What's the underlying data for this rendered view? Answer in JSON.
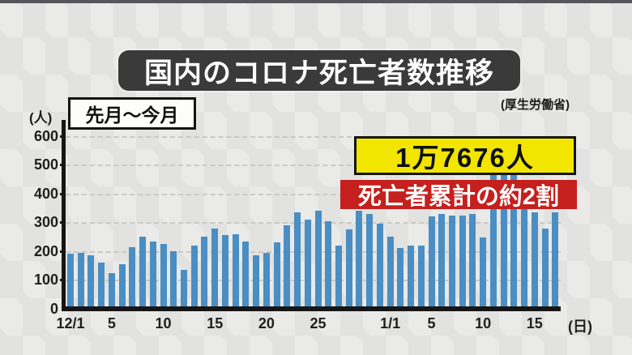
{
  "header": {
    "title": "国内のコロナ死亡者数推移",
    "period_label": "先月〜今月",
    "source": "(厚生労働省)"
  },
  "callouts": {
    "total_deaths_label": "1万7676人",
    "share_label": "死亡者累計の約2割",
    "total_box_color": "#f2e600",
    "share_box_color": "#c5201e"
  },
  "chart_data": {
    "type": "bar",
    "title": "国内のコロナ死亡者数推移",
    "xlabel_unit": "(日)",
    "ylabel_unit": "(人)",
    "ylim": [
      0,
      650
    ],
    "yticks": [
      0,
      100,
      200,
      300,
      400,
      500,
      600
    ],
    "grid": "horizontal-dashed",
    "legend": "none",
    "bar_color": "#4a8ec3",
    "categories": [
      "12/1",
      "12/2",
      "12/3",
      "12/4",
      "12/5",
      "12/6",
      "12/7",
      "12/8",
      "12/9",
      "12/10",
      "12/11",
      "12/12",
      "12/13",
      "12/14",
      "12/15",
      "12/16",
      "12/17",
      "12/18",
      "12/19",
      "12/20",
      "12/21",
      "12/22",
      "12/23",
      "12/24",
      "12/25",
      "12/26",
      "12/27",
      "12/28",
      "12/29",
      "12/30",
      "12/31",
      "1/1",
      "1/2",
      "1/3",
      "1/4",
      "1/5",
      "1/6",
      "1/7",
      "1/8",
      "1/9",
      "1/10",
      "1/11",
      "1/12",
      "1/13",
      "1/14",
      "1/15",
      "1/16",
      "1/17"
    ],
    "values": [
      190,
      195,
      185,
      160,
      125,
      155,
      215,
      250,
      235,
      225,
      200,
      135,
      220,
      250,
      280,
      255,
      260,
      235,
      185,
      195,
      230,
      290,
      335,
      310,
      340,
      305,
      220,
      275,
      340,
      330,
      295,
      250,
      210,
      220,
      220,
      320,
      330,
      325,
      325,
      330,
      248,
      475,
      490,
      485,
      350,
      335,
      280,
      335
    ],
    "xticks": [
      {
        "index": 0,
        "label": "12/1"
      },
      {
        "index": 4,
        "label": "5"
      },
      {
        "index": 9,
        "label": "10"
      },
      {
        "index": 14,
        "label": "15"
      },
      {
        "index": 19,
        "label": "20"
      },
      {
        "index": 24,
        "label": "25"
      },
      {
        "index": 31,
        "label": "1/1"
      },
      {
        "index": 35,
        "label": "5"
      },
      {
        "index": 40,
        "label": "10"
      },
      {
        "index": 45,
        "label": "15"
      }
    ]
  }
}
